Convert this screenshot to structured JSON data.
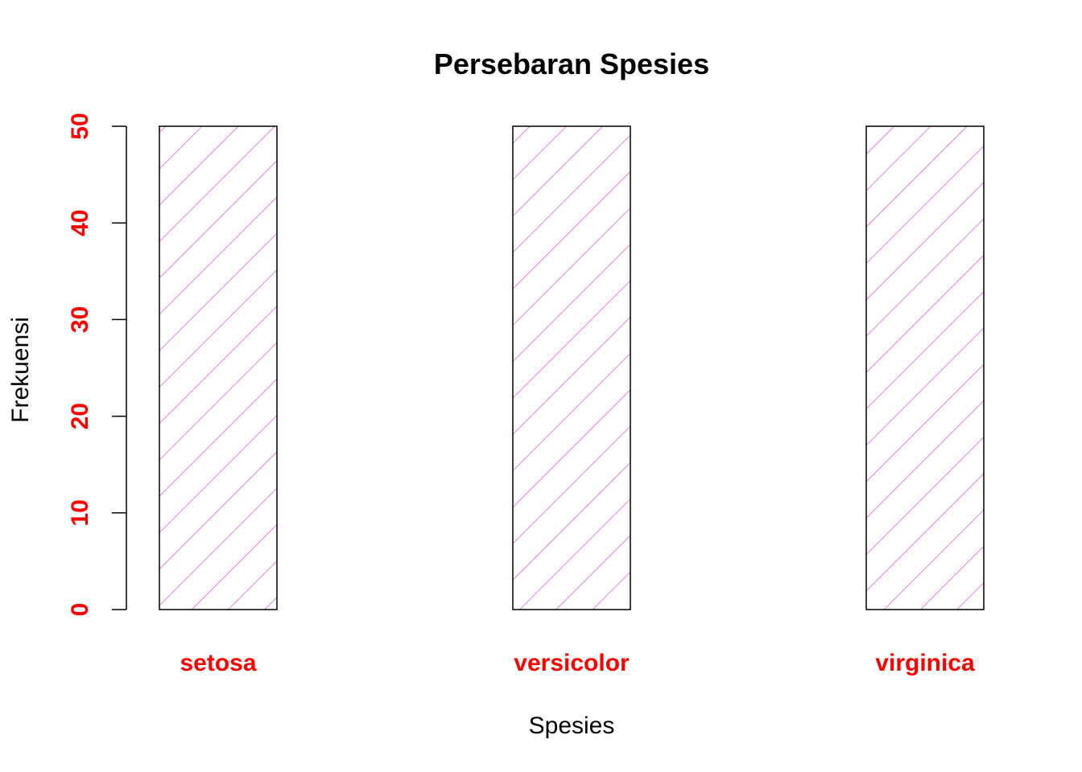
{
  "chart_data": {
    "type": "bar",
    "title": "Persebaran Spesies",
    "xlabel": "Spesies",
    "ylabel": "Frekuensi",
    "categories": [
      "setosa",
      "versicolor",
      "virginica"
    ],
    "values": [
      50,
      50,
      50
    ],
    "ylim": [
      0,
      50
    ],
    "yticks": [
      0,
      10,
      20,
      30,
      40,
      50
    ],
    "grid": false,
    "legend": "none",
    "bar_fill": "diagonal hatch",
    "colors": {
      "hatch": "#e060e0",
      "bar_border": "#000000",
      "tick_labels": "#ff0000",
      "category_labels": "#ff0000",
      "text": "#000000"
    }
  }
}
